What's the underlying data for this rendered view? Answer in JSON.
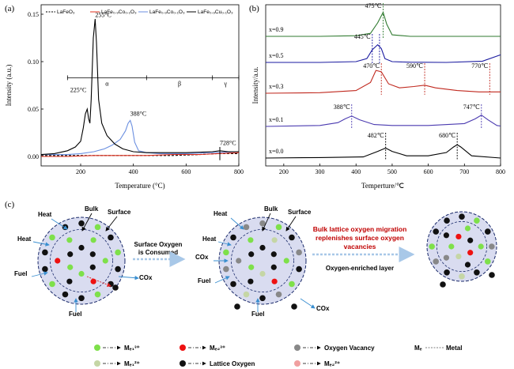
{
  "panels": {
    "a": "(a)",
    "b": "(b)",
    "c": "(c)"
  },
  "chart_data": [
    {
      "type": "line",
      "panel": "a",
      "xlabel": "Temperature (°C)",
      "ylabel": "Intensity (a.u.)",
      "xlim": [
        50,
        800
      ],
      "ylim": [
        -0.01,
        0.16
      ],
      "x_ticks": [
        200,
        400,
        600,
        800
      ],
      "y_ticks": [
        0.0,
        0.05,
        0.1,
        0.15
      ],
      "y_tick_labels": [
        "0.00",
        "0.05",
        "0.10",
        "0.15"
      ],
      "legend": [
        "LaFeO₃",
        "LaFe₀.₉Co₀.₁O₃",
        "LaFe₀.₉Co₀.₁O₃",
        "LaFe₀.₉Cu₀.₁O₃"
      ],
      "series": [
        {
          "name": "LaFeO₃",
          "color": "#000000",
          "dash": true,
          "x": [
            50,
            150,
            250,
            350,
            450,
            550,
            650,
            720,
            800
          ],
          "y": [
            0.001,
            0.001,
            0.001,
            0.001,
            0.001,
            0.001,
            0.002,
            0.003,
            0.003
          ]
        },
        {
          "name": "LaFe₀.₉Co₀.₁O₃",
          "color": "#e0301e",
          "dash": false,
          "x": [
            50,
            150,
            250,
            350,
            450,
            550,
            650,
            720,
            800
          ],
          "y": [
            0.0,
            0.0,
            0.001,
            0.001,
            0.001,
            0.002,
            0.002,
            0.003,
            0.004
          ]
        },
        {
          "name": "LaFe₀.₉Co₀.₁O₃",
          "color": "#6b8fe0",
          "dash": false,
          "x": [
            50,
            150,
            200,
            250,
            290,
            320,
            350,
            370,
            380,
            388,
            395,
            405,
            420,
            450,
            500,
            600,
            700,
            800
          ],
          "y": [
            0.002,
            0.002,
            0.003,
            0.005,
            0.008,
            0.012,
            0.018,
            0.027,
            0.035,
            0.038,
            0.032,
            0.015,
            0.006,
            0.004,
            0.003,
            0.003,
            0.004,
            0.005
          ]
        },
        {
          "name": "LaFe₀.₉Cu₀.₁O₃",
          "color": "#000000",
          "dash": false,
          "x": [
            50,
            100,
            150,
            180,
            200,
            210,
            218,
            225,
            230,
            235,
            240,
            248,
            255,
            260,
            268,
            280,
            300,
            330,
            360,
            400,
            450,
            500,
            600,
            700,
            728,
            760,
            800
          ],
          "y": [
            0.002,
            0.003,
            0.006,
            0.01,
            0.016,
            0.03,
            0.045,
            0.05,
            0.04,
            0.035,
            0.06,
            0.125,
            0.145,
            0.12,
            0.06,
            0.035,
            0.022,
            0.013,
            0.008,
            0.005,
            0.004,
            0.004,
            0.004,
            0.005,
            0.006,
            0.005,
            0.005
          ]
        }
      ],
      "annotations": [
        {
          "text": "255°C",
          "x": 255,
          "y": 0.147
        },
        {
          "text": "225°C",
          "x": 222,
          "y": 0.068
        },
        {
          "text": "388°C",
          "x": 388,
          "y": 0.043
        },
        {
          "text": "728°C",
          "x": 728,
          "y": 0.012
        }
      ],
      "regions": [
        {
          "label": "α",
          "from": 150,
          "to": 450
        },
        {
          "label": "β",
          "from": 450,
          "to": 700
        },
        {
          "label": "γ",
          "from": 700,
          "to": 800
        }
      ],
      "region_y": 0.083
    },
    {
      "type": "line",
      "panel": "b",
      "xlabel": "Temperture/℃",
      "ylabel": "Intensity/a.u.",
      "xlim": [
        150,
        800
      ],
      "x_ticks": [
        200,
        300,
        400,
        500,
        600,
        700,
        800
      ],
      "series": [
        {
          "name": "x=0.9",
          "color": "#2f7a2f",
          "x": [
            150,
            300,
            400,
            440,
            460,
            475,
            485,
            500,
            550,
            650,
            800
          ],
          "y": [
            0.0,
            0.0,
            0.02,
            0.1,
            0.45,
            0.8,
            0.4,
            0.05,
            0.0,
            0.0,
            0.0
          ]
        },
        {
          "name": "x=0.5",
          "color": "#1a1aa0",
          "x": [
            150,
            300,
            400,
            430,
            445,
            460,
            470,
            480,
            500,
            550,
            650,
            750,
            800
          ],
          "y": [
            0.0,
            0.0,
            0.03,
            0.15,
            0.5,
            0.7,
            0.55,
            0.15,
            0.03,
            0.01,
            0.0,
            0.05,
            0.3
          ]
        },
        {
          "name": "x=0.3",
          "color": "#c0281e",
          "x": [
            150,
            300,
            400,
            440,
            455,
            470,
            490,
            520,
            560,
            590,
            620,
            680,
            740,
            770,
            800
          ],
          "y": [
            0.0,
            0.02,
            0.1,
            0.4,
            0.85,
            0.8,
            0.35,
            0.2,
            0.25,
            0.3,
            0.2,
            0.1,
            0.05,
            0.05,
            0.05
          ]
        },
        {
          "name": "x=0.1",
          "color": "#4a3ab0",
          "x": [
            150,
            300,
            350,
            370,
            388,
            410,
            450,
            500,
            600,
            700,
            730,
            747,
            765,
            790,
            800
          ],
          "y": [
            0.0,
            0.05,
            0.2,
            0.4,
            0.55,
            0.35,
            0.1,
            0.05,
            0.05,
            0.15,
            0.4,
            0.6,
            0.35,
            0.05,
            0.02
          ]
        },
        {
          "name": "x=0.0",
          "color": "#000000",
          "x": [
            150,
            300,
            420,
            460,
            482,
            500,
            540,
            600,
            650,
            670,
            680,
            690,
            720,
            800
          ],
          "y": [
            0.0,
            0.02,
            0.05,
            0.3,
            0.45,
            0.3,
            0.1,
            0.1,
            0.25,
            0.5,
            0.6,
            0.5,
            0.1,
            0.0
          ]
        }
      ],
      "markers": [
        {
          "series": "x=0.9",
          "x": 475,
          "text": "475℃"
        },
        {
          "series": "x=0.5",
          "x": 445,
          "text": "445℃",
          "x2": 465
        },
        {
          "series": "x=0.3",
          "x": 470,
          "text": "470℃"
        },
        {
          "series": "x=0.3",
          "x": 590,
          "text": "590℃"
        },
        {
          "series": "x=0.3",
          "x": 770,
          "text": "770℃"
        },
        {
          "series": "x=0.1",
          "x": 388,
          "text": "388℃"
        },
        {
          "series": "x=0.1",
          "x": 747,
          "text": "747℃"
        },
        {
          "series": "x=0.0",
          "x": 482,
          "text": "482℃"
        },
        {
          "series": "x=0.0",
          "x": 680,
          "text": "680℃"
        }
      ]
    }
  ],
  "diagram": {
    "labels": {
      "bulk": "Bulk",
      "surface": "Surface",
      "heat": "Heat",
      "fuel": "Fuel",
      "cox": "COx",
      "step1": [
        "Surface Oxygen",
        "is Consumed"
      ],
      "step2": [
        "Bulk lattice oxygen migration",
        "replenishes surface oxygen",
        "vacancies"
      ],
      "enriched": "Oxygen-enriched layer"
    },
    "key": {
      "me1_3": "Mₑ₁³⁺",
      "me1_2": "Mₑ₁²⁺",
      "me2_3": "Mₑ₂³⁺",
      "me2_2": "Mₑ₂²⁺",
      "lattice": "Lattice Oxygen",
      "vacancy": "Oxygen Vacancy",
      "metal_a": "Mₑ",
      "metal_b": "Metal"
    },
    "colors": {
      "green": "#7ee04a",
      "light_green": "#c5d6a5",
      "red": "#ee1111",
      "pink": "#f0a0a0",
      "black": "#111111",
      "gray": "#888888",
      "circle_fill": "#d9dcf0"
    }
  }
}
